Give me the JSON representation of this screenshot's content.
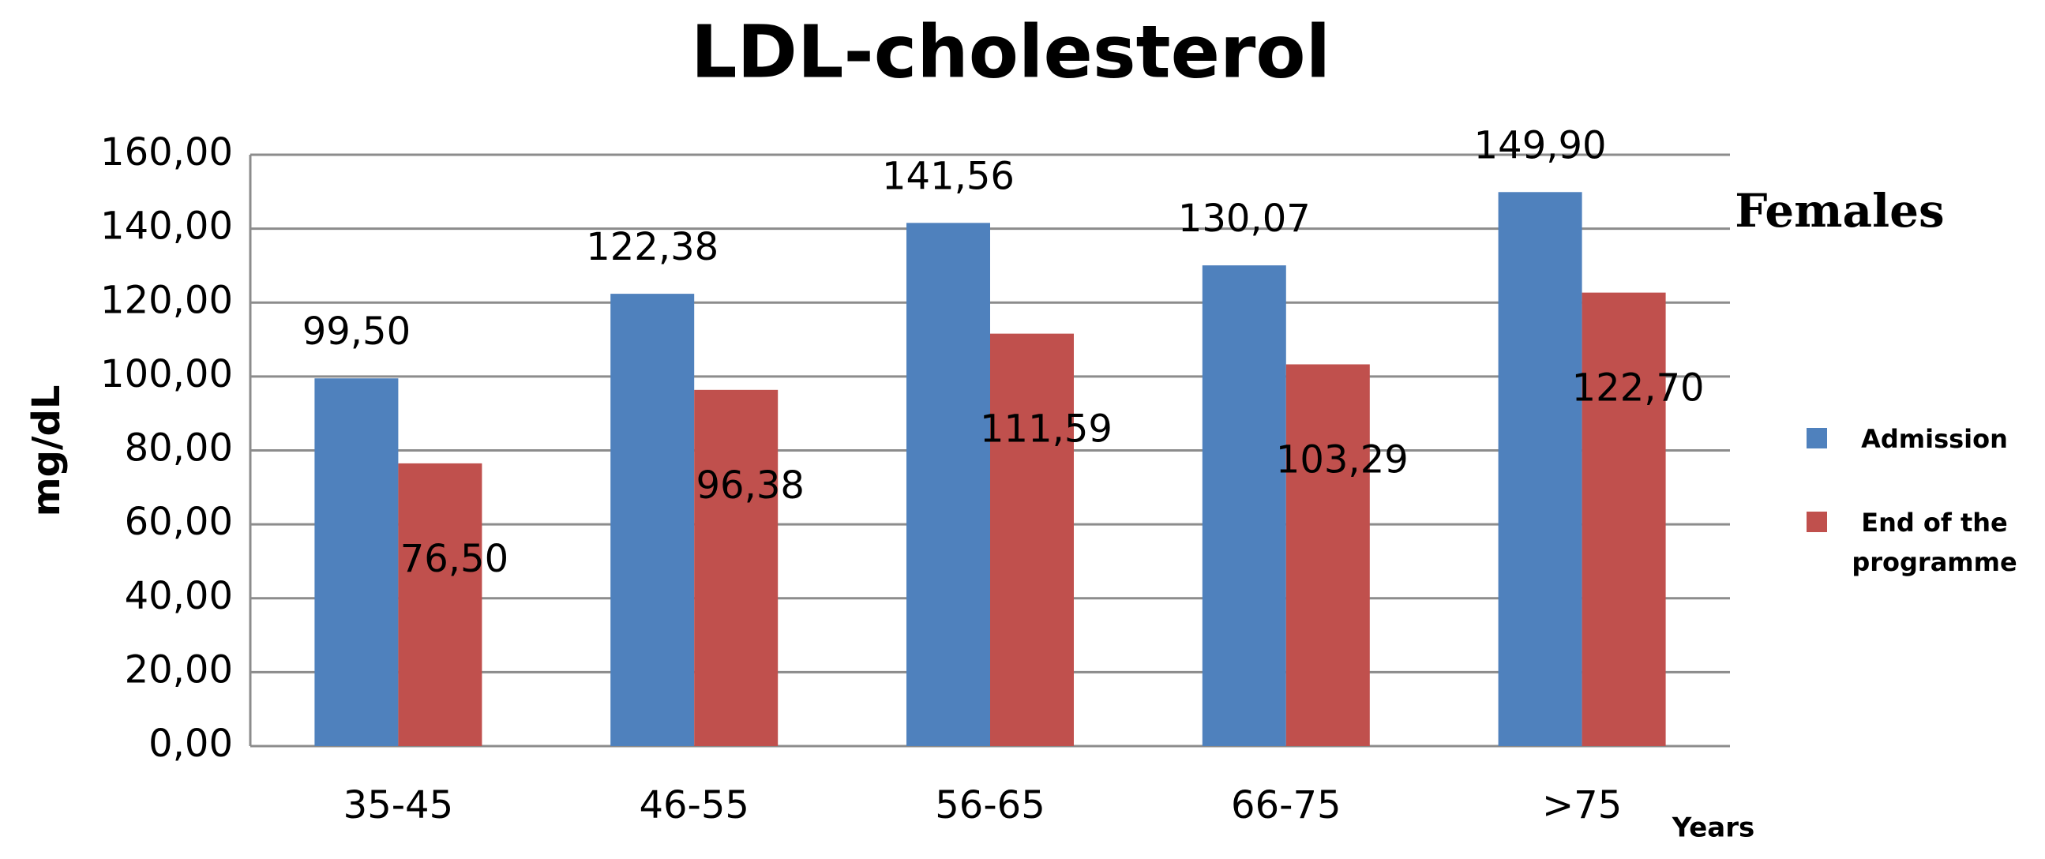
{
  "chart_data": {
    "type": "bar",
    "title": "LDL-cholesterol",
    "subtitle": "Females",
    "y_label": "mg/dL",
    "x_label": "Years",
    "categories": [
      "35-45",
      "46-55",
      "56-65",
      "66-75",
      ">75"
    ],
    "series": [
      {
        "name": "Admission",
        "color": "#4f81bd",
        "values": [
          99.5,
          122.38,
          141.56,
          130.07,
          149.9
        ],
        "value_labels": [
          "99,50",
          "122,38",
          "141,56",
          "130,07",
          "149,90"
        ]
      },
      {
        "name": "End of the programme",
        "color": "#c0504d",
        "values": [
          76.5,
          96.38,
          111.59,
          103.29,
          122.7
        ],
        "value_labels": [
          "76,50",
          "96,38",
          "111,59",
          "103,29",
          "122,70"
        ]
      }
    ],
    "ylim": [
      0,
      160
    ],
    "yticks": [
      {
        "value": 0,
        "label": "0,00"
      },
      {
        "value": 20,
        "label": "20,00"
      },
      {
        "value": 40,
        "label": "40,00"
      },
      {
        "value": 60,
        "label": "60,00"
      },
      {
        "value": 80,
        "label": "80,00"
      },
      {
        "value": 100,
        "label": "100,00"
      },
      {
        "value": 120,
        "label": "120,00"
      },
      {
        "value": 140,
        "label": "140,00"
      },
      {
        "value": 160,
        "label": "160,00"
      }
    ],
    "grid": true,
    "legend": "right"
  }
}
